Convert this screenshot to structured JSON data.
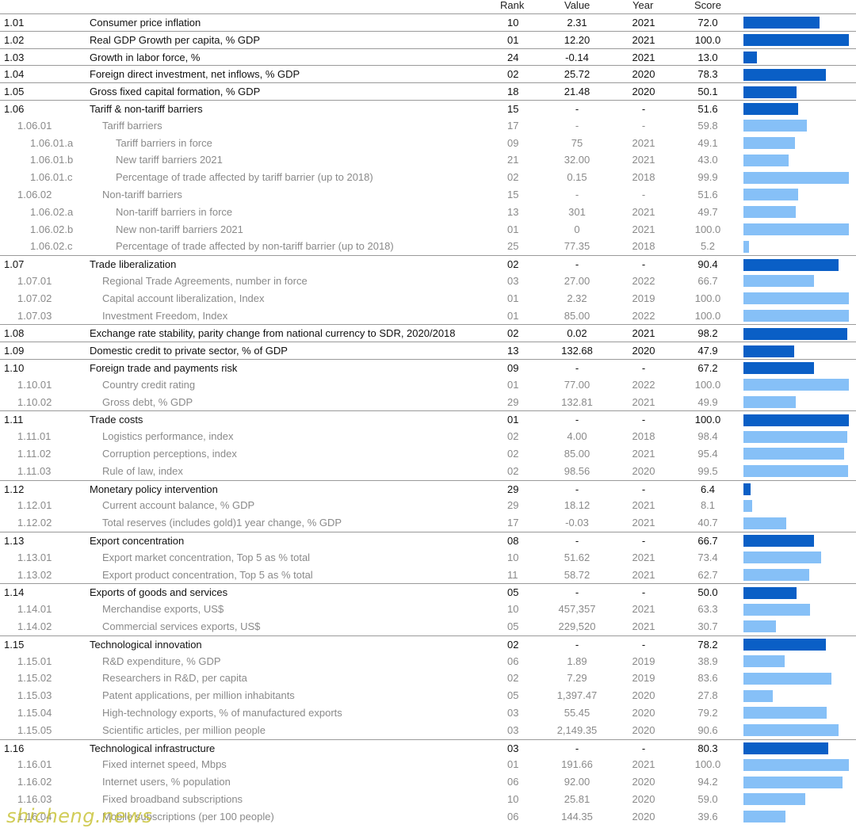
{
  "chart_data": {
    "type": "table",
    "columns": [
      "",
      "",
      "Rank",
      "Value",
      "Year",
      "Score"
    ],
    "score_range": [
      0,
      100
    ],
    "rows": [
      {
        "code": "1.01",
        "name": "Consumer price inflation",
        "rank": "10",
        "value": "2.31",
        "year": "2021",
        "score": "72.0",
        "score_num": 72.0,
        "level": 1
      },
      {
        "code": "1.02",
        "name": "Real GDP Growth per capita, % GDP",
        "rank": "01",
        "value": "12.20",
        "year": "2021",
        "score": "100.0",
        "score_num": 100.0,
        "level": 1
      },
      {
        "code": "1.03",
        "name": "Growth in labor force, %",
        "rank": "24",
        "value": "-0.14",
        "year": "2021",
        "score": "13.0",
        "score_num": 13.0,
        "level": 1
      },
      {
        "code": "1.04",
        "name": "Foreign direct investment, net inflows, % GDP",
        "rank": "02",
        "value": "25.72",
        "year": "2020",
        "score": "78.3",
        "score_num": 78.3,
        "level": 1
      },
      {
        "code": "1.05",
        "name": "Gross fixed capital formation, % GDP",
        "rank": "18",
        "value": "21.48",
        "year": "2020",
        "score": "50.1",
        "score_num": 50.1,
        "level": 1
      },
      {
        "code": "1.06",
        "name": "Tariff & non-tariff barriers",
        "rank": "15",
        "value": "-",
        "year": "-",
        "score": "51.6",
        "score_num": 51.6,
        "level": 1
      },
      {
        "code": "1.06.01",
        "name": "Tariff barriers",
        "rank": "17",
        "value": "-",
        "year": "-",
        "score": "59.8",
        "score_num": 59.8,
        "level": 2
      },
      {
        "code": "1.06.01.a",
        "name": "Tariff barriers in force",
        "rank": "09",
        "value": "75",
        "year": "2021",
        "score": "49.1",
        "score_num": 49.1,
        "level": 3
      },
      {
        "code": "1.06.01.b",
        "name": "New tariff barriers 2021",
        "rank": "21",
        "value": "32.00",
        "year": "2021",
        "score": "43.0",
        "score_num": 43.0,
        "level": 3
      },
      {
        "code": "1.06.01.c",
        "name": "Percentage of trade affected by tariff barrier (up to 2018)",
        "rank": "02",
        "value": "0.15",
        "year": "2018",
        "score": "99.9",
        "score_num": 99.9,
        "level": 3
      },
      {
        "code": "1.06.02",
        "name": "Non-tariff barriers",
        "rank": "15",
        "value": "-",
        "year": "-",
        "score": "51.6",
        "score_num": 51.6,
        "level": 2
      },
      {
        "code": "1.06.02.a",
        "name": "Non-tariff barriers in force",
        "rank": "13",
        "value": "301",
        "year": "2021",
        "score": "49.7",
        "score_num": 49.7,
        "level": 3
      },
      {
        "code": "1.06.02.b",
        "name": "New non-tariff barriers 2021",
        "rank": "01",
        "value": "0",
        "year": "2021",
        "score": "100.0",
        "score_num": 100.0,
        "level": 3
      },
      {
        "code": "1.06.02.c",
        "name": "Percentage of trade affected by non-tariff barrier (up to 2018)",
        "rank": "25",
        "value": "77.35",
        "year": "2018",
        "score": "5.2",
        "score_num": 5.2,
        "level": 3
      },
      {
        "code": "1.07",
        "name": "Trade liberalization",
        "rank": "02",
        "value": "-",
        "year": "-",
        "score": "90.4",
        "score_num": 90.4,
        "level": 1
      },
      {
        "code": "1.07.01",
        "name": "Regional Trade Agreements, number in force",
        "rank": "03",
        "value": "27.00",
        "year": "2022",
        "score": "66.7",
        "score_num": 66.7,
        "level": 2
      },
      {
        "code": "1.07.02",
        "name": "Capital account liberalization, Index",
        "rank": "01",
        "value": "2.32",
        "year": "2019",
        "score": "100.0",
        "score_num": 100.0,
        "level": 2
      },
      {
        "code": "1.07.03",
        "name": "Investment Freedom, Index",
        "rank": "01",
        "value": "85.00",
        "year": "2022",
        "score": "100.0",
        "score_num": 100.0,
        "level": 2
      },
      {
        "code": "1.08",
        "name": "Exchange rate stability, parity change from national currency to SDR, 2020/2018",
        "rank": "02",
        "value": "0.02",
        "year": "2021",
        "score": "98.2",
        "score_num": 98.2,
        "level": 1
      },
      {
        "code": "1.09",
        "name": "Domestic credit to private sector, % of GDP",
        "rank": "13",
        "value": "132.68",
        "year": "2020",
        "score": "47.9",
        "score_num": 47.9,
        "level": 1
      },
      {
        "code": "1.10",
        "name": "Foreign trade and payments risk",
        "rank": "09",
        "value": "-",
        "year": "-",
        "score": "67.2",
        "score_num": 67.2,
        "level": 1
      },
      {
        "code": "1.10.01",
        "name": "Country credit rating",
        "rank": "01",
        "value": "77.00",
        "year": "2022",
        "score": "100.0",
        "score_num": 100.0,
        "level": 2
      },
      {
        "code": "1.10.02",
        "name": "Gross debt, % GDP",
        "rank": "29",
        "value": "132.81",
        "year": "2021",
        "score": "49.9",
        "score_num": 49.9,
        "level": 2
      },
      {
        "code": "1.11",
        "name": "Trade costs",
        "rank": "01",
        "value": "-",
        "year": "-",
        "score": "100.0",
        "score_num": 100.0,
        "level": 1
      },
      {
        "code": "1.11.01",
        "name": "Logistics performance, index",
        "rank": "02",
        "value": "4.00",
        "year": "2018",
        "score": "98.4",
        "score_num": 98.4,
        "level": 2
      },
      {
        "code": "1.11.02",
        "name": "Corruption perceptions, index",
        "rank": "02",
        "value": "85.00",
        "year": "2021",
        "score": "95.4",
        "score_num": 95.4,
        "level": 2
      },
      {
        "code": "1.11.03",
        "name": "Rule of law, index",
        "rank": "02",
        "value": "98.56",
        "year": "2020",
        "score": "99.5",
        "score_num": 99.5,
        "level": 2
      },
      {
        "code": "1.12",
        "name": "Monetary policy intervention",
        "rank": "29",
        "value": "-",
        "year": "-",
        "score": "6.4",
        "score_num": 6.4,
        "level": 1
      },
      {
        "code": "1.12.01",
        "name": "Current account balance, % GDP",
        "rank": "29",
        "value": "18.12",
        "year": "2021",
        "score": "8.1",
        "score_num": 8.1,
        "level": 2
      },
      {
        "code": "1.12.02",
        "name": "Total reserves (includes gold)1 year change, % GDP",
        "rank": "17",
        "value": "-0.03",
        "year": "2021",
        "score": "40.7",
        "score_num": 40.7,
        "level": 2
      },
      {
        "code": "1.13",
        "name": "Export concentration",
        "rank": "08",
        "value": "-",
        "year": "-",
        "score": "66.7",
        "score_num": 66.7,
        "level": 1
      },
      {
        "code": "1.13.01",
        "name": "Export market concentration, Top 5 as % total",
        "rank": "10",
        "value": "51.62",
        "year": "2021",
        "score": "73.4",
        "score_num": 73.4,
        "level": 2
      },
      {
        "code": "1.13.02",
        "name": "Export product concentration, Top 5 as % total",
        "rank": "11",
        "value": "58.72",
        "year": "2021",
        "score": "62.7",
        "score_num": 62.7,
        "level": 2
      },
      {
        "code": "1.14",
        "name": "Exports of goods and services",
        "rank": "05",
        "value": "-",
        "year": "-",
        "score": "50.0",
        "score_num": 50.0,
        "level": 1
      },
      {
        "code": "1.14.01",
        "name": "Merchandise exports, US$",
        "rank": "10",
        "value": "457,357",
        "year": "2021",
        "score": "63.3",
        "score_num": 63.3,
        "level": 2
      },
      {
        "code": "1.14.02",
        "name": "Commercial services exports, US$",
        "rank": "05",
        "value": "229,520",
        "year": "2021",
        "score": "30.7",
        "score_num": 30.7,
        "level": 2
      },
      {
        "code": "1.15",
        "name": "Technological innovation",
        "rank": "02",
        "value": "-",
        "year": "-",
        "score": "78.2",
        "score_num": 78.2,
        "level": 1
      },
      {
        "code": "1.15.01",
        "name": "R&D expenditure, % GDP",
        "rank": "06",
        "value": "1.89",
        "year": "2019",
        "score": "38.9",
        "score_num": 38.9,
        "level": 2
      },
      {
        "code": "1.15.02",
        "name": "Researchers in R&D, per capita",
        "rank": "02",
        "value": "7.29",
        "year": "2019",
        "score": "83.6",
        "score_num": 83.6,
        "level": 2
      },
      {
        "code": "1.15.03",
        "name": "Patent applications, per million inhabitants",
        "rank": "05",
        "value": "1,397.47",
        "year": "2020",
        "score": "27.8",
        "score_num": 27.8,
        "level": 2
      },
      {
        "code": "1.15.04",
        "name": "High-technology exports, % of manufactured exports",
        "rank": "03",
        "value": "55.45",
        "year": "2020",
        "score": "79.2",
        "score_num": 79.2,
        "level": 2
      },
      {
        "code": "1.15.05",
        "name": "Scientific articles, per million people",
        "rank": "03",
        "value": "2,149.35",
        "year": "2020",
        "score": "90.6",
        "score_num": 90.6,
        "level": 2
      },
      {
        "code": "1.16",
        "name": "Technological infrastructure",
        "rank": "03",
        "value": "-",
        "year": "-",
        "score": "80.3",
        "score_num": 80.3,
        "level": 1
      },
      {
        "code": "1.16.01",
        "name": "Fixed internet speed, Mbps",
        "rank": "01",
        "value": "191.66",
        "year": "2021",
        "score": "100.0",
        "score_num": 100.0,
        "level": 2
      },
      {
        "code": "1.16.02",
        "name": "Internet users, % population",
        "rank": "06",
        "value": "92.00",
        "year": "2020",
        "score": "94.2",
        "score_num": 94.2,
        "level": 2
      },
      {
        "code": "1.16.03",
        "name": "Fixed broadband subscriptions",
        "rank": "10",
        "value": "25.81",
        "year": "2020",
        "score": "59.0",
        "score_num": 59.0,
        "level": 2
      },
      {
        "code": "1.16.04",
        "name": "Mobile subscriptions (per 100 people)",
        "rank": "06",
        "value": "144.35",
        "year": "2020",
        "score": "39.6",
        "score_num": 39.6,
        "level": 2
      }
    ],
    "colors": {
      "main_bar": "#0a5fc6",
      "sub_bar": "#86c0f7"
    }
  },
  "watermark": "shicheng.news"
}
